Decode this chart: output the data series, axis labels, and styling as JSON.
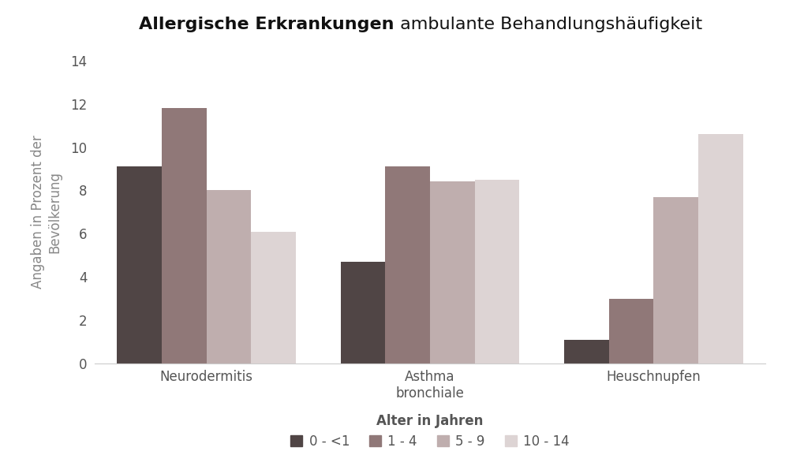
{
  "title_bold": "Allergische Erkrankungen",
  "title_regular": " ambulante Behandlungshäufigkeit",
  "ylabel": "Angaben in Prozent der\nBevölkerung",
  "legend_title": "Alter in Jahren",
  "categories": [
    "Neurodermitis",
    "Asthma\nbronchiale",
    "Heuschnupfen"
  ],
  "series_labels": [
    "0 - <1",
    "1 - 4",
    "5 - 9",
    "10 - 14"
  ],
  "values": [
    [
      9.1,
      11.8,
      8.0,
      6.1
    ],
    [
      4.7,
      9.1,
      8.4,
      8.5
    ],
    [
      1.1,
      3.0,
      7.7,
      10.6
    ]
  ],
  "colors": [
    "#504545",
    "#907878",
    "#bfaeae",
    "#ddd4d4"
  ],
  "ylim": [
    0,
    14
  ],
  "yticks": [
    0,
    2,
    4,
    6,
    8,
    10,
    12,
    14
  ],
  "bar_width": 0.2,
  "background_color": "#ffffff",
  "title_fontsize": 16,
  "axis_label_fontsize": 12,
  "tick_fontsize": 12,
  "legend_fontsize": 12
}
